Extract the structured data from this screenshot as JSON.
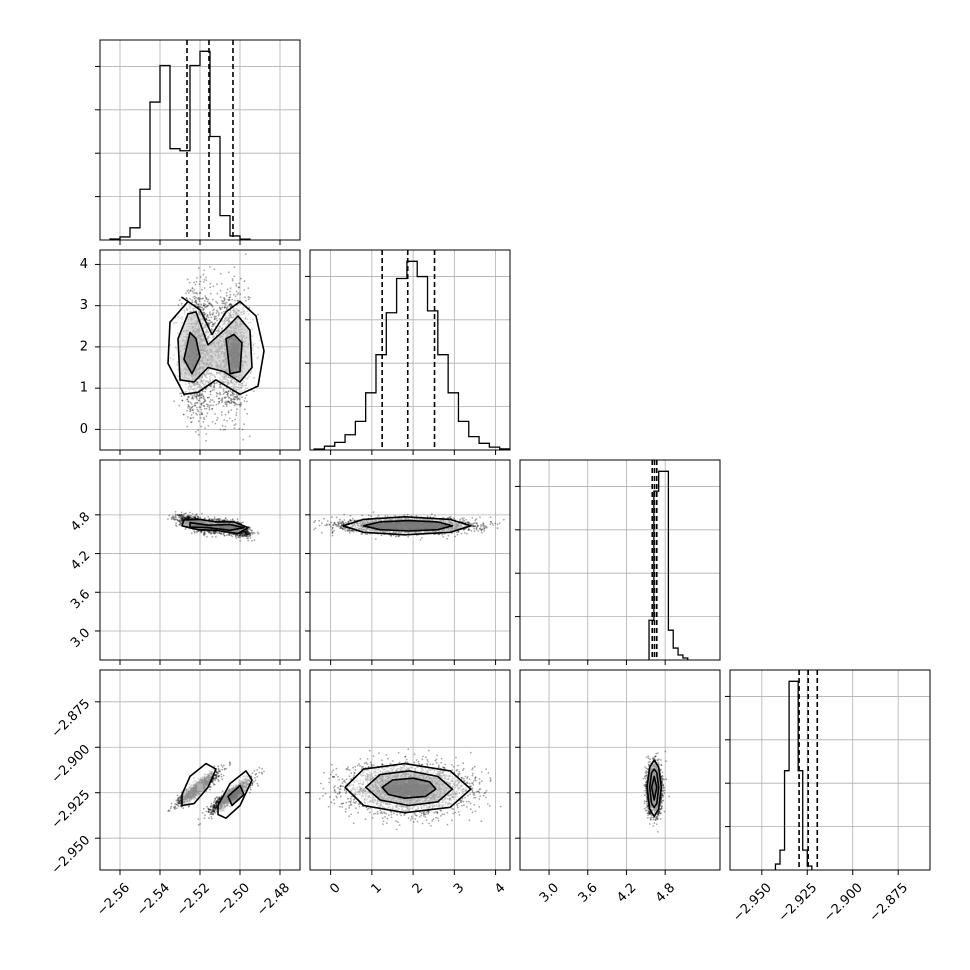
{
  "chart_data": {
    "type": "corner",
    "parameters": [
      {
        "range": [
          -2.57,
          -2.47
        ],
        "ticks": [
          {
            "value": -2.56,
            "label": "−2.56"
          },
          {
            "value": -2.54,
            "label": "−2.54"
          },
          {
            "value": -2.52,
            "label": "−2.52"
          },
          {
            "value": -2.5,
            "label": "−2.50"
          },
          {
            "value": -2.48,
            "label": "−2.48"
          }
        ],
        "quantiles": [
          -2.5265,
          -2.5155,
          -2.5035
        ],
        "hist": {
          "start": -2.565,
          "width": 0.005,
          "counts": [
            0.005,
            0.015,
            0.06,
            0.25,
            0.68,
            0.86,
            0.45,
            0.44,
            0.86,
            0.93,
            0.51,
            0.12,
            0.02,
            0.004
          ]
        }
      },
      {
        "range": [
          -0.5,
          4.35
        ],
        "ticks": [
          {
            "value": 0,
            "label": "0"
          },
          {
            "value": 1,
            "label": "1"
          },
          {
            "value": 2,
            "label": "2"
          },
          {
            "value": 3,
            "label": "3"
          },
          {
            "value": 4,
            "label": "4"
          }
        ],
        "quantiles": [
          1.25,
          1.87,
          2.52
        ],
        "hist": {
          "start": -0.4,
          "width": 0.25,
          "counts": [
            0.005,
            0.02,
            0.04,
            0.08,
            0.15,
            0.3,
            0.5,
            0.72,
            0.9,
            0.99,
            0.91,
            0.73,
            0.5,
            0.3,
            0.15,
            0.07,
            0.035,
            0.015,
            0.006
          ]
        }
      },
      {
        "range": [
          2.55,
          5.65
        ],
        "ticks": [
          {
            "value": 3.0,
            "label": "3.0"
          },
          {
            "value": 3.6,
            "label": "3.6"
          },
          {
            "value": 4.2,
            "label": "4.2"
          },
          {
            "value": 4.8,
            "label": "4.8"
          }
        ],
        "quantiles": [
          4.6,
          4.635,
          4.67
        ],
        "hist": {
          "start": 4.55,
          "width": 0.075,
          "counts": [
            0.2,
            0.85,
            0.95,
            0.95,
            0.15,
            0.06,
            0.025,
            0.01
          ]
        }
      },
      {
        "range": [
          -2.9675,
          -2.8575
        ],
        "ticks": [
          {
            "value": -2.95,
            "label": "−2.950"
          },
          {
            "value": -2.925,
            "label": "−2.925"
          },
          {
            "value": -2.9,
            "label": "−2.900"
          },
          {
            "value": -2.875,
            "label": "−2.875"
          }
        ],
        "quantiles": [
          -2.9295,
          -2.9245,
          -2.9195
        ],
        "hist": {
          "start": -2.9425,
          "width": 0.0025,
          "counts": [
            0.03,
            0.1,
            0.5,
            0.95,
            0.95,
            0.5,
            0.1,
            0.02
          ]
        }
      }
    ],
    "pairs": [
      {
        "row": 1,
        "col": 0,
        "corr": 0,
        "modes": [
          {
            "x": -2.521,
            "y": 1.9,
            "sx": 0.0045,
            "sy": 0.7,
            "w": 1
          },
          {
            "x": -2.5045,
            "y": 1.85,
            "sx": 0.0045,
            "sy": 0.7,
            "w": 1
          }
        ],
        "points": 3200,
        "contours": [
          {
            "level": "outer",
            "x": [
              -2.526,
              -2.535,
              -2.536,
              -2.528,
              -2.521,
              -2.512,
              -2.5,
              -2.491,
              -2.488,
              -2.492,
              -2.5,
              -2.507,
              -2.514,
              -2.52,
              -2.529
            ],
            "y": [
              3.1,
              2.6,
              1.6,
              0.85,
              0.9,
              1.2,
              0.85,
              1.05,
              1.9,
              2.75,
              3.1,
              2.85,
              2.3,
              2.9,
              3.2
            ]
          },
          {
            "level": "middle",
            "x": [
              -2.526,
              -2.531,
              -2.53,
              -2.523,
              -2.516,
              -2.508,
              -2.5,
              -2.494,
              -2.495,
              -2.501,
              -2.508,
              -2.516,
              -2.522
            ],
            "y": [
              2.8,
              2.2,
              1.2,
              1.15,
              1.5,
              1.4,
              1.15,
              1.5,
              2.4,
              2.75,
              2.4,
              2.05,
              2.85
            ]
          },
          {
            "level": "inner",
            "x": [
              -2.525,
              -2.528,
              -2.524,
              -2.52,
              -2.522
            ],
            "y": [
              2.35,
              1.7,
              1.35,
              1.75,
              2.2
            ]
          },
          {
            "level": "inner",
            "x": [
              -2.507,
              -2.505,
              -2.5,
              -2.499,
              -2.503
            ],
            "y": [
              2.2,
              1.35,
              1.4,
              2.1,
              2.3
            ]
          }
        ],
        "density": [
          {
            "x": -2.5235,
            "y": 1.95,
            "w": 0.004,
            "h": 0.6,
            "shade": "#555555"
          },
          {
            "x": -2.5025,
            "y": 1.8,
            "w": 0.004,
            "h": 0.6,
            "shade": "#333333"
          }
        ]
      },
      {
        "row": 2,
        "col": 0,
        "corr": -0.6,
        "modes": [
          {
            "x": -2.521,
            "y": 4.66,
            "sx": 0.0045,
            "sy": 0.06,
            "w": 1
          },
          {
            "x": -2.5045,
            "y": 4.6,
            "sx": 0.0045,
            "sy": 0.06,
            "w": 1
          }
        ],
        "points": 2400,
        "contours": [
          {
            "level": "outer",
            "x": [
              -2.528,
              -2.52,
              -2.512,
              -2.503,
              -2.496,
              -2.501,
              -2.512,
              -2.521,
              -2.529
            ],
            "y": [
              4.72,
              4.73,
              4.69,
              4.69,
              4.6,
              4.51,
              4.56,
              4.57,
              4.63
            ]
          },
          {
            "level": "inner",
            "x": [
              -2.525,
              -2.516,
              -2.505,
              -2.498,
              -2.505,
              -2.516,
              -2.525
            ],
            "y": [
              4.68,
              4.64,
              4.65,
              4.6,
              4.56,
              4.6,
              4.61
            ]
          }
        ],
        "density": [
          {
            "x": -2.5245,
            "y": 4.64,
            "w": 0.004,
            "h": 0.08,
            "shade": "#444444"
          },
          {
            "x": -2.5055,
            "y": 4.59,
            "w": 0.005,
            "h": 0.08,
            "shade": "#333333"
          }
        ]
      },
      {
        "row": 3,
        "col": 0,
        "corr": 0.9,
        "modes": [
          {
            "x": -2.521,
            "y": -2.9225,
            "sx": 0.005,
            "sy": 0.0045,
            "w": 1
          },
          {
            "x": -2.5045,
            "y": -2.9265,
            "sx": 0.005,
            "sy": 0.0045,
            "w": 1
          }
        ],
        "points": 2400,
        "contours": [
          {
            "level": "outer",
            "x": [
              -2.529,
              -2.525,
              -2.517,
              -2.512,
              -2.516,
              -2.523,
              -2.529
            ],
            "y": [
              -2.926,
              -2.916,
              -2.909,
              -2.912,
              -2.922,
              -2.931,
              -2.932
            ]
          },
          {
            "level": "outer",
            "x": [
              -2.511,
              -2.505,
              -2.497,
              -2.494,
              -2.5,
              -2.507,
              -2.511
            ],
            "y": [
              -2.932,
              -2.92,
              -2.913,
              -2.918,
              -2.932,
              -2.939,
              -2.937
            ]
          },
          {
            "level": "inner",
            "x": [
              -2.506,
              -2.5,
              -2.498,
              -2.504
            ],
            "y": [
              -2.927,
              -2.921,
              -2.926,
              -2.932
            ]
          }
        ],
        "density": [
          {
            "x": -2.52,
            "y": -2.922,
            "w": 0.003,
            "h": 0.004,
            "shade": "#666666"
          },
          {
            "x": -2.5025,
            "y": -2.926,
            "w": 0.003,
            "h": 0.005,
            "shade": "#111111"
          }
        ]
      },
      {
        "row": 2,
        "col": 1,
        "corr": 0,
        "modes": [
          {
            "x": 1.88,
            "y": 4.63,
            "sx": 0.72,
            "sy": 0.055,
            "w": 1
          }
        ],
        "points": 3200,
        "contours": [
          {
            "level": "outer",
            "x": [
              0.3,
              0.8,
              1.8,
              2.9,
              3.4,
              2.9,
              1.8,
              0.8
            ],
            "y": [
              4.63,
              4.73,
              4.77,
              4.73,
              4.63,
              4.53,
              4.49,
              4.53
            ]
          },
          {
            "level": "inner",
            "x": [
              0.8,
              1.2,
              1.9,
              2.6,
              2.95,
              2.6,
              1.9,
              1.2
            ],
            "y": [
              4.63,
              4.69,
              4.71,
              4.69,
              4.63,
              4.57,
              4.55,
              4.57
            ]
          }
        ],
        "density": [
          {
            "x": 1.9,
            "y": 4.63,
            "w": 1.4,
            "h": 0.07,
            "shade": "#333333"
          }
        ]
      },
      {
        "row": 3,
        "col": 1,
        "corr": 0,
        "modes": [
          {
            "x": 1.88,
            "y": -2.923,
            "sx": 0.72,
            "sy": 0.0065,
            "w": 1
          }
        ],
        "points": 3200,
        "contours": [
          {
            "level": "outer",
            "x": [
              0.35,
              0.8,
              1.8,
              2.9,
              3.4,
              2.9,
              1.8,
              0.8
            ],
            "y": [
              -2.922,
              -2.912,
              -2.909,
              -2.913,
              -2.923,
              -2.933,
              -2.936,
              -2.932
            ]
          },
          {
            "level": "middle",
            "x": [
              0.85,
              1.2,
              1.9,
              2.6,
              2.95,
              2.6,
              1.9,
              1.2
            ],
            "y": [
              -2.922,
              -2.915,
              -2.913,
              -2.916,
              -2.923,
              -2.93,
              -2.932,
              -2.929
            ]
          },
          {
            "level": "inner",
            "x": [
              1.25,
              1.5,
              2.0,
              2.4,
              2.55,
              2.3,
              1.8,
              1.4
            ],
            "y": [
              -2.922,
              -2.918,
              -2.917,
              -2.919,
              -2.923,
              -2.927,
              -2.928,
              -2.926
            ]
          }
        ],
        "density": [
          {
            "x": 1.85,
            "y": -2.923,
            "w": 1.0,
            "h": 0.005,
            "shade": "#222222"
          }
        ]
      },
      {
        "row": 3,
        "col": 2,
        "corr": 0,
        "modes": [
          {
            "x": 4.63,
            "y": -2.923,
            "sx": 0.055,
            "sy": 0.0065,
            "w": 1
          }
        ],
        "points": 2400,
        "contours": [
          {
            "level": "outer",
            "x": [
              4.52,
              4.56,
              4.63,
              4.7,
              4.74,
              4.7,
              4.63,
              4.56
            ],
            "y": [
              -2.922,
              -2.911,
              -2.907,
              -2.911,
              -2.922,
              -2.934,
              -2.938,
              -2.934
            ]
          },
          {
            "level": "middle",
            "x": [
              4.56,
              4.59,
              4.63,
              4.67,
              4.7,
              4.67,
              4.63,
              4.59
            ],
            "y": [
              -2.922,
              -2.914,
              -2.912,
              -2.914,
              -2.922,
              -2.931,
              -2.933,
              -2.931
            ]
          },
          {
            "level": "inner",
            "x": [
              4.59,
              4.63,
              4.67,
              4.63
            ],
            "y": [
              -2.922,
              -2.916,
              -2.922,
              -2.929
            ]
          }
        ],
        "density": [
          {
            "x": 4.63,
            "y": -2.923,
            "w": 0.06,
            "h": 0.008,
            "shade": "#111111"
          }
        ]
      }
    ]
  }
}
